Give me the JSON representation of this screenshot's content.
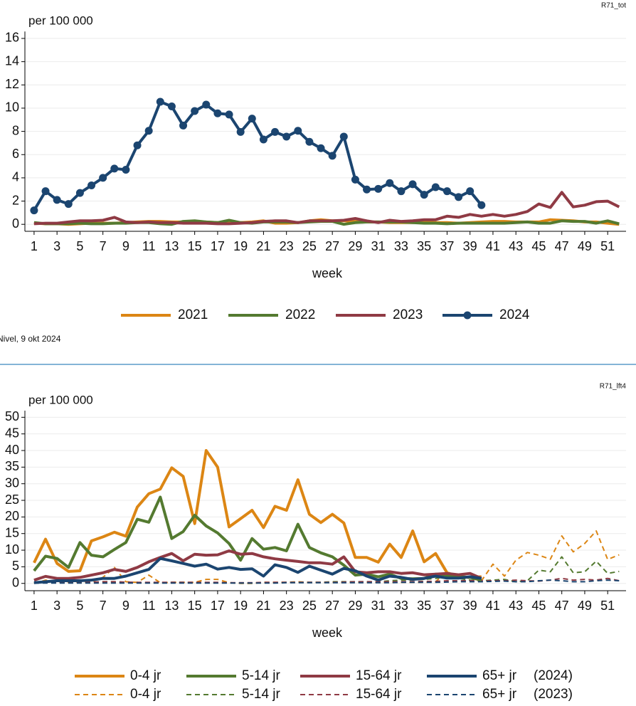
{
  "chart_data": [
    {
      "type": "line",
      "corner_label": "R71_tot",
      "ylabel": "per 100 000",
      "xlabel": "week",
      "source": "Nivel, 9 okt 2024",
      "x": [
        1,
        2,
        3,
        4,
        5,
        6,
        7,
        8,
        9,
        10,
        11,
        12,
        13,
        14,
        15,
        16,
        17,
        18,
        19,
        20,
        21,
        22,
        23,
        24,
        25,
        26,
        27,
        28,
        29,
        30,
        31,
        32,
        33,
        34,
        35,
        36,
        37,
        38,
        39,
        40,
        41,
        42,
        43,
        44,
        45,
        46,
        47,
        48,
        49,
        50,
        51,
        52
      ],
      "xlim": [
        0.2,
        52.6
      ],
      "xticks": [
        1,
        3,
        5,
        7,
        9,
        11,
        13,
        15,
        17,
        19,
        21,
        23,
        25,
        27,
        29,
        31,
        33,
        35,
        37,
        39,
        41,
        43,
        45,
        47,
        49,
        51
      ],
      "ylim": [
        -0.6,
        16.6
      ],
      "yticks": [
        0,
        2,
        4,
        6,
        8,
        10,
        12,
        14,
        16
      ],
      "grid": true,
      "series": [
        {
          "name": "2021",
          "color": "#dc8614",
          "values": [
            0.1,
            0.05,
            0.05,
            0.0,
            0.05,
            0.1,
            0.1,
            0.1,
            0.15,
            0.2,
            0.25,
            0.25,
            0.2,
            0.2,
            0.15,
            0.2,
            0.15,
            0.2,
            0.15,
            0.2,
            0.3,
            0.1,
            0.1,
            0.15,
            0.3,
            0.4,
            0.3,
            0.3,
            0.25,
            0.2,
            0.2,
            0.15,
            0.15,
            0.15,
            0.2,
            0.15,
            0.15,
            0.1,
            0.15,
            0.2,
            0.25,
            0.25,
            0.2,
            0.2,
            0.2,
            0.4,
            0.35,
            0.3,
            0.2,
            0.2,
            0.1,
            0.0
          ]
        },
        {
          "name": "2022",
          "color": "#547a30",
          "values": [
            0.15,
            0.05,
            0.05,
            0.05,
            0.1,
            0.05,
            0.05,
            0.1,
            0.1,
            0.15,
            0.15,
            0.05,
            0.0,
            0.25,
            0.3,
            0.2,
            0.15,
            0.35,
            0.15,
            0.1,
            0.2,
            0.2,
            0.2,
            0.15,
            0.2,
            0.25,
            0.25,
            0.0,
            0.15,
            0.2,
            0.2,
            0.2,
            0.2,
            0.15,
            0.1,
            0.1,
            0.05,
            0.1,
            0.1,
            0.1,
            0.1,
            0.1,
            0.15,
            0.2,
            0.1,
            0.1,
            0.3,
            0.25,
            0.25,
            0.1,
            0.3,
            0.05
          ]
        },
        {
          "name": "2023",
          "color": "#8f3a44",
          "values": [
            0.05,
            0.1,
            0.1,
            0.2,
            0.3,
            0.3,
            0.35,
            0.6,
            0.2,
            0.15,
            0.2,
            0.15,
            0.15,
            0.1,
            0.1,
            0.1,
            0.05,
            0.05,
            0.1,
            0.15,
            0.25,
            0.3,
            0.3,
            0.15,
            0.3,
            0.3,
            0.3,
            0.35,
            0.5,
            0.3,
            0.15,
            0.35,
            0.25,
            0.3,
            0.4,
            0.4,
            0.7,
            0.6,
            0.85,
            0.7,
            0.85,
            0.7,
            0.85,
            1.1,
            1.75,
            1.45,
            2.75,
            1.5,
            1.65,
            1.95,
            2.0,
            1.5
          ]
        },
        {
          "name": "2024",
          "color": "#1b4570",
          "marker": true,
          "values": [
            1.2,
            2.85,
            2.1,
            1.75,
            2.7,
            3.35,
            4.0,
            4.8,
            4.7,
            6.8,
            8.05,
            10.55,
            10.15,
            8.5,
            9.75,
            10.3,
            9.55,
            9.45,
            7.95,
            9.1,
            7.3,
            7.95,
            7.55,
            8.05,
            7.1,
            6.55,
            5.9,
            7.55,
            3.85,
            3.0,
            3.05,
            3.55,
            2.85,
            3.45,
            2.55,
            3.2,
            2.85,
            2.35,
            2.85,
            1.65,
            null,
            null,
            null,
            null,
            null,
            null,
            null,
            null,
            null,
            null,
            null,
            null
          ]
        }
      ]
    },
    {
      "type": "line",
      "corner_label": "R71_lft4",
      "ylabel": "per 100 000",
      "xlabel": "week",
      "legend_years": [
        "(2024)",
        "(2023)"
      ],
      "x": [
        1,
        2,
        3,
        4,
        5,
        6,
        7,
        8,
        9,
        10,
        11,
        12,
        13,
        14,
        15,
        16,
        17,
        18,
        19,
        20,
        21,
        22,
        23,
        24,
        25,
        26,
        27,
        28,
        29,
        30,
        31,
        32,
        33,
        34,
        35,
        36,
        37,
        38,
        39,
        40,
        41,
        42,
        43,
        44,
        45,
        46,
        47,
        48,
        49,
        50,
        51,
        52
      ],
      "xlim": [
        0.2,
        52.6
      ],
      "xticks": [
        1,
        3,
        5,
        7,
        9,
        11,
        13,
        15,
        17,
        19,
        21,
        23,
        25,
        27,
        29,
        31,
        33,
        35,
        37,
        39,
        41,
        43,
        45,
        47,
        49,
        51
      ],
      "ylim": [
        -2.2,
        52
      ],
      "yticks": [
        0,
        5,
        10,
        15,
        20,
        25,
        30,
        35,
        40,
        45,
        50
      ],
      "grid": true,
      "series": [
        {
          "name": "0-4 jr",
          "color": "#dc8614",
          "dash": false,
          "values": [
            6.2,
            13.3,
            6.0,
            3.6,
            3.8,
            12.8,
            14.0,
            15.4,
            14.2,
            23.0,
            27.0,
            28.4,
            34.8,
            32.2,
            18.0,
            40.0,
            35.0,
            17.0,
            19.5,
            22.0,
            16.8,
            23.2,
            22.0,
            31.2,
            20.8,
            18.3,
            20.8,
            18.2,
            7.8,
            7.8,
            6.4,
            11.8,
            7.8,
            15.8,
            6.5,
            9.0,
            3.2,
            2.0,
            1.8,
            2.0,
            null,
            null,
            null,
            null,
            null,
            null,
            null,
            null,
            null,
            null,
            null,
            null
          ]
        },
        {
          "name": "5-14 jr",
          "color": "#547a30",
          "dash": false,
          "values": [
            3.8,
            8.2,
            7.5,
            4.8,
            12.3,
            8.5,
            8.0,
            10.2,
            12.3,
            19.3,
            18.4,
            26.0,
            13.5,
            15.6,
            20.5,
            17.3,
            15.2,
            12.0,
            7.0,
            13.5,
            10.3,
            10.8,
            9.8,
            17.8,
            10.8,
            9.2,
            8.0,
            5.5,
            2.5,
            2.8,
            2.0,
            2.8,
            1.5,
            1.4,
            1.5,
            2.8,
            2.5,
            2.0,
            1.8,
            1.0,
            null,
            null,
            null,
            null,
            null,
            null,
            null,
            null,
            null,
            null,
            null,
            null
          ]
        },
        {
          "name": "15-64 jr",
          "color": "#8f3a44",
          "dash": false,
          "values": [
            1.0,
            2.1,
            1.5,
            1.5,
            1.8,
            2.5,
            3.2,
            4.2,
            3.6,
            4.8,
            6.5,
            7.8,
            9.0,
            6.8,
            8.8,
            8.5,
            8.6,
            9.8,
            8.8,
            9.0,
            8.0,
            7.4,
            7.0,
            6.6,
            6.2,
            6.2,
            5.8,
            8.0,
            3.5,
            3.2,
            3.5,
            3.5,
            3.0,
            3.2,
            2.6,
            2.8,
            3.0,
            2.6,
            3.0,
            1.5,
            null,
            null,
            null,
            null,
            null,
            null,
            null,
            null,
            null,
            null,
            null,
            null
          ]
        },
        {
          "name": "65+ jr",
          "color": "#1b4570",
          "dash": false,
          "values": [
            0.2,
            0.5,
            0.8,
            0.8,
            0.8,
            1.0,
            1.5,
            1.5,
            2.2,
            3.2,
            4.2,
            7.5,
            6.8,
            6.0,
            5.2,
            5.8,
            4.3,
            4.8,
            4.2,
            4.4,
            2.2,
            5.6,
            4.8,
            3.3,
            5.2,
            4.0,
            2.8,
            4.5,
            3.8,
            2.2,
            1.0,
            2.2,
            1.8,
            1.2,
            1.5,
            2.2,
            1.6,
            1.6,
            2.0,
            1.5,
            null,
            null,
            null,
            null,
            null,
            null,
            null,
            null,
            null,
            null,
            null,
            null
          ]
        },
        {
          "name": "0-4 jr",
          "color": "#dc8614",
          "dash": true,
          "values": [
            0,
            1.0,
            0.5,
            0.3,
            0.5,
            0.5,
            1.8,
            4.8,
            0.5,
            0.3,
            2.5,
            0.2,
            0.3,
            0.3,
            0.3,
            1.2,
            1.2,
            0.2,
            0,
            0,
            0.3,
            0.3,
            0.3,
            0.5,
            0.3,
            0.3,
            0.3,
            0.3,
            0.3,
            0.3,
            0.3,
            0.3,
            0.3,
            0.3,
            0.3,
            0.5,
            3.5,
            2.0,
            1.5,
            0.8,
            5.8,
            2.2,
            7.0,
            9.3,
            8.5,
            7.3,
            14.3,
            9.5,
            12.0,
            15.8,
            7.2,
            8.6
          ]
        },
        {
          "name": "5-14 jr",
          "color": "#547a30",
          "dash": true,
          "values": [
            0.2,
            0.3,
            0.3,
            0.3,
            0.3,
            0.3,
            0.5,
            0.5,
            0.3,
            0.2,
            0.2,
            0.2,
            0.3,
            0.3,
            0.2,
            0.2,
            0.2,
            0.2,
            0.1,
            0.1,
            0.2,
            0.2,
            0.3,
            0.3,
            0.3,
            0.3,
            0.5,
            0.5,
            0.5,
            0.5,
            0.5,
            0.8,
            1.0,
            1.0,
            1.2,
            1.5,
            2.0,
            1.5,
            1.0,
            0.8,
            1.0,
            1.2,
            0.5,
            0.8,
            4.0,
            3.5,
            8.0,
            3.2,
            3.5,
            6.7,
            3.0,
            3.6
          ]
        },
        {
          "name": "15-64 jr",
          "color": "#8f3a44",
          "dash": true,
          "values": [
            0.3,
            0.3,
            0.3,
            0.4,
            0.4,
            0.4,
            0.5,
            0.5,
            0.4,
            0.3,
            0.3,
            0.3,
            0.3,
            0.3,
            0.3,
            0.3,
            0.3,
            0.2,
            0.2,
            0.2,
            0.3,
            0.3,
            0.3,
            0.3,
            0.3,
            0.3,
            0.3,
            0.4,
            0.5,
            0.5,
            0.5,
            0.5,
            0.5,
            0.5,
            0.6,
            0.6,
            0.8,
            0.8,
            0.8,
            0.8,
            0.8,
            0.8,
            1.0,
            0.8,
            0.7,
            1.0,
            1.5,
            1.0,
            1.2,
            1.0,
            1.5,
            0.8
          ]
        },
        {
          "name": "65+ jr",
          "color": "#1b4570",
          "dash": true,
          "values": [
            0.1,
            0.1,
            0.1,
            0.1,
            0.1,
            0.1,
            0.1,
            0.1,
            0.1,
            0.1,
            0.1,
            0.1,
            0.1,
            0.1,
            0.1,
            0.1,
            0.1,
            0.1,
            0.1,
            0.1,
            0.1,
            0.1,
            0.2,
            0.2,
            0.2,
            0.2,
            0.2,
            0.2,
            0.2,
            0.2,
            0.2,
            0.2,
            0.3,
            0.3,
            0.3,
            0.3,
            0.4,
            0.5,
            0.5,
            0.5,
            0.6,
            0.7,
            0.5,
            0.5,
            0.8,
            1.0,
            0.8,
            0.5,
            0.5,
            0.8,
            1.0,
            0.8
          ]
        }
      ]
    }
  ]
}
